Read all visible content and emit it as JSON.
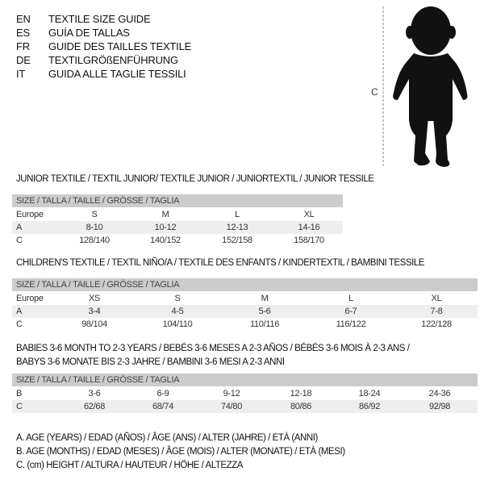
{
  "header": [
    {
      "code": "EN",
      "text": "TEXTILE SIZE GUIDE"
    },
    {
      "code": "ES",
      "text": "GUÍA DE TALLAS"
    },
    {
      "code": "FR",
      "text": "GUIDE DES TAILLES TEXTILE"
    },
    {
      "code": "DE",
      "text": "TEXTILGRÖßENFÜHRUNG"
    },
    {
      "code": "IT",
      "text": "GUIDA ALLE TAGLIE TESSILI"
    }
  ],
  "figure": {
    "measure_label": "C",
    "icon": "baby-silhouette-icon"
  },
  "junior": {
    "title": "JUNIOR TEXTILE / TEXTIL JUNIOR/ TEXTILE JUNIOR / JUNIORTEXTIL / JUNIOR TESSILE",
    "header": "SIZE / TALLA / TAILLE / GRÖSSE / TAGLIA",
    "rows": [
      {
        "label": "Europe",
        "cells": [
          "S",
          "M",
          "L",
          "XL"
        ]
      },
      {
        "label": "A",
        "cells": [
          "8-10",
          "10-12",
          "12-13",
          "14-16"
        ]
      },
      {
        "label": "C",
        "cells": [
          "128/140",
          "140/152",
          "152/158",
          "158/170"
        ]
      }
    ]
  },
  "children": {
    "title": "CHILDREN'S TEXTILE / TEXTIL NIÑO/A / TEXTILE DES ENFANTS / KINDERTEXTIL / BAMBINI TESSILE",
    "header": "SIZE / TALLA / TAILLE / GRÖSSE / TAGLIA",
    "rows": [
      {
        "label": "Europe",
        "cells": [
          "XS",
          "S",
          "M",
          "L",
          "XL"
        ]
      },
      {
        "label": "A",
        "cells": [
          "3-4",
          "4-5",
          "5-6",
          "6-7",
          "7-8"
        ]
      },
      {
        "label": "C",
        "cells": [
          "98/104",
          "104/110",
          "110/116",
          "116/122",
          "122/128"
        ]
      }
    ]
  },
  "babies": {
    "title_line1": "BABIES 3-6 MONTH TO 2-3 YEARS / BEBÉS 3-6 MESES A 2-3 AÑOS / BÉBÉS 3-6 MOIS À 2-3 ANS /",
    "title_line2": "BABYS 3-6 MONATE BIS 2-3 JAHRE / BAMBINI 3-6 MESI A 2-3 ANNI",
    "header": "SIZE / TALLA / TAILLE / GRÖSSE / TAGLIA",
    "rows": [
      {
        "label": "B",
        "cells": [
          "3-6",
          "6-9",
          "9-12",
          "12-18",
          "18-24",
          "24-36"
        ]
      },
      {
        "label": "C",
        "cells": [
          "62/68",
          "68/74",
          "74/80",
          "80/86",
          "86/92",
          "92/98"
        ]
      }
    ]
  },
  "legend": [
    "A. AGE (YEARS) / EDAD (AÑOS) / ÂGE (ANS) / ALTER (JAHRE) / ETÀ (ANNI)",
    "B. AGE (MONTHS) / EDAD (MESES) / ÂGE (MOIS) / ALTER (MONATE) / ETÀ (MESI)",
    "C. (cm) HEIGHT / ALTURA / HAUTEUR / HÖHE / ALTEZZA"
  ]
}
